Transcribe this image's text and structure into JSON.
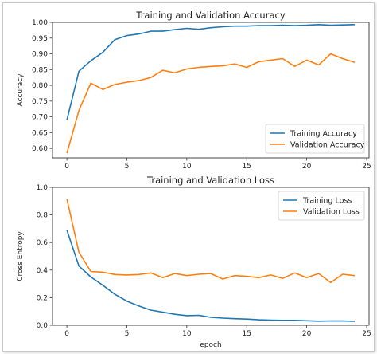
{
  "chart_data": [
    {
      "type": "line",
      "title": "Training and Validation Accuracy",
      "xlabel": "",
      "ylabel": "Accuracy",
      "xlim": [
        -1.2,
        25.2
      ],
      "ylim": [
        0.57,
        1.0
      ],
      "xticks": [
        0,
        5,
        10,
        15,
        20,
        25
      ],
      "yticks": [
        0.6,
        0.65,
        0.7,
        0.75,
        0.8,
        0.85,
        0.9,
        0.95,
        1.0
      ],
      "ytick_labels": [
        "0.60",
        "0.65",
        "0.70",
        "0.75",
        "0.80",
        "0.85",
        "0.90",
        "0.95",
        "1.00"
      ],
      "grid": false,
      "legend_position": "lower right",
      "x": [
        0,
        1,
        2,
        3,
        4,
        5,
        6,
        7,
        8,
        9,
        10,
        11,
        12,
        13,
        14,
        15,
        16,
        17,
        18,
        19,
        20,
        21,
        22,
        23,
        24
      ],
      "series": [
        {
          "name": "Training Accuracy",
          "color": "#1f77b4",
          "values": [
            0.69,
            0.845,
            0.878,
            0.905,
            0.945,
            0.958,
            0.963,
            0.972,
            0.972,
            0.977,
            0.981,
            0.978,
            0.983,
            0.986,
            0.988,
            0.988,
            0.99,
            0.99,
            0.991,
            0.99,
            0.991,
            0.993,
            0.991,
            0.992,
            0.993
          ]
        },
        {
          "name": "Validation Accuracy",
          "color": "#ff7f0e",
          "values": [
            0.585,
            0.72,
            0.807,
            0.787,
            0.803,
            0.81,
            0.815,
            0.825,
            0.848,
            0.84,
            0.852,
            0.857,
            0.86,
            0.862,
            0.868,
            0.857,
            0.875,
            0.88,
            0.885,
            0.86,
            0.88,
            0.865,
            0.9,
            0.885,
            0.873
          ]
        }
      ]
    },
    {
      "type": "line",
      "title": "Training and Validation Loss",
      "xlabel": "epoch",
      "ylabel": "Cross Entropy",
      "xlim": [
        -1.2,
        25.2
      ],
      "ylim": [
        0.0,
        1.0
      ],
      "xticks": [
        0,
        5,
        10,
        15,
        20,
        25
      ],
      "yticks": [
        0.0,
        0.2,
        0.4,
        0.6,
        0.8,
        1.0
      ],
      "ytick_labels": [
        "0.0",
        "0.2",
        "0.4",
        "0.6",
        "0.8",
        "1.0"
      ],
      "grid": false,
      "legend_position": "upper right",
      "x": [
        0,
        1,
        2,
        3,
        4,
        5,
        6,
        7,
        8,
        9,
        10,
        11,
        12,
        13,
        14,
        15,
        16,
        17,
        18,
        19,
        20,
        21,
        22,
        23,
        24
      ],
      "series": [
        {
          "name": "Training Loss",
          "color": "#1f77b4",
          "values": [
            0.69,
            0.43,
            0.35,
            0.29,
            0.225,
            0.175,
            0.14,
            0.11,
            0.095,
            0.08,
            0.07,
            0.072,
            0.058,
            0.052,
            0.048,
            0.045,
            0.04,
            0.037,
            0.036,
            0.036,
            0.033,
            0.03,
            0.032,
            0.031,
            0.029
          ]
        },
        {
          "name": "Validation Loss",
          "color": "#ff7f0e",
          "values": [
            0.915,
            0.53,
            0.39,
            0.385,
            0.368,
            0.365,
            0.368,
            0.38,
            0.345,
            0.375,
            0.36,
            0.37,
            0.375,
            0.335,
            0.36,
            0.355,
            0.345,
            0.365,
            0.34,
            0.38,
            0.345,
            0.375,
            0.31,
            0.37,
            0.36
          ]
        }
      ]
    }
  ]
}
